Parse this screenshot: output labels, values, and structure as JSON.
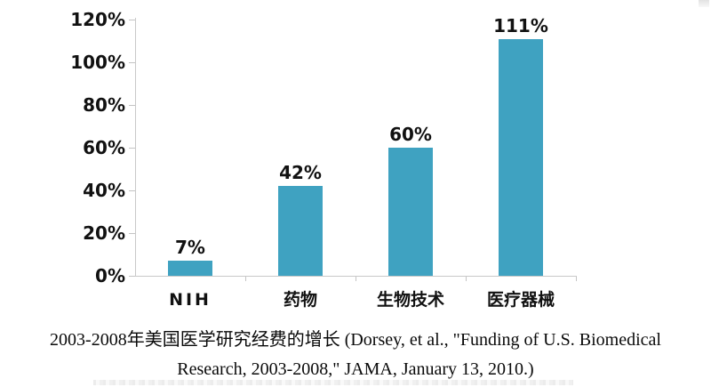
{
  "chart_data": {
    "type": "bar",
    "title": "",
    "categories": [
      "NIH",
      "药物",
      "生物技术",
      "医疗器械"
    ],
    "values": [
      7,
      42,
      60,
      111
    ],
    "value_labels": [
      "7%",
      "42%",
      "60%",
      "111%"
    ],
    "y_axis": {
      "min": 0,
      "max": 120,
      "ticks": [
        0,
        20,
        40,
        60,
        80,
        100,
        120
      ],
      "tick_labels": [
        "0%",
        "20%",
        "40%",
        "60%",
        "80%",
        "100%",
        "120%"
      ]
    },
    "xlabel": "",
    "ylabel": "",
    "grid": false,
    "legend": null,
    "bar_color": "#3fa2c1",
    "axis_color": "#c9c9c9"
  },
  "caption": {
    "line1": "2003-2008年美国医学研究经费的增长 (Dorsey, et al., \"Funding of U.S. Biomedical",
    "line2": "Research, 2003-2008,\" JAMA, January 13, 2010.)"
  }
}
